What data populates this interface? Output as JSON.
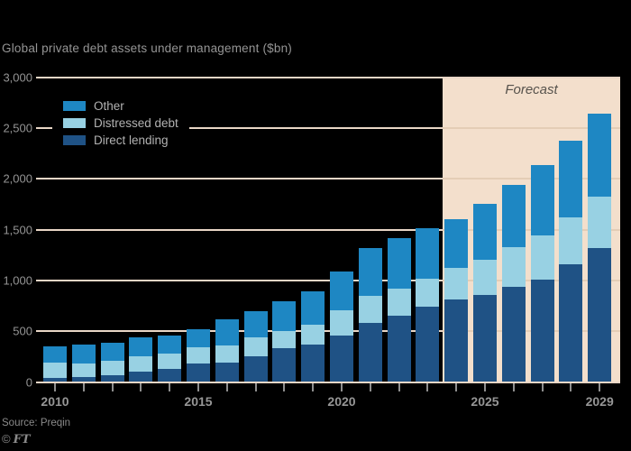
{
  "title": "Global private debt assets under management ($bn)",
  "forecast": {
    "label": "Forecast",
    "start_year": 2024
  },
  "legend": [
    {
      "label": "Other",
      "color": "#1e87c3"
    },
    {
      "label": "Distressed debt",
      "color": "#98d1e3"
    },
    {
      "label": "Direct lending",
      "color": "#1f5285"
    }
  ],
  "source": {
    "label": "Source: Preqin"
  },
  "ft_credit": {
    "symbol": "©",
    "text": "FT"
  },
  "colors": {
    "background": "#000000",
    "gridline": "#e9d6c6",
    "forecast_band": "#f3dfcc",
    "band_gridline": "#e4cdb6",
    "other": "#1e87c3",
    "distressed_debt": "#98d1e3",
    "direct_lending": "#1f5285",
    "axis_text": "#949494"
  },
  "chart_data": {
    "type": "bar",
    "stacked": true,
    "title": "Global private debt assets under management ($bn)",
    "xlabel": "",
    "ylabel": "$bn",
    "ylim": [
      0,
      3000
    ],
    "grid": true,
    "legend_position": "top-left",
    "forecast_region": {
      "from_year": 2024,
      "to_year": 2029,
      "label": "Forecast"
    },
    "x": [
      2010,
      2011,
      2012,
      2013,
      2014,
      2015,
      2016,
      2017,
      2018,
      2019,
      2020,
      2021,
      2022,
      2023,
      2024,
      2025,
      2026,
      2027,
      2028,
      2029
    ],
    "series": [
      {
        "name": "Direct lending",
        "color": "#1f5285",
        "values": [
          40,
          50,
          65,
          100,
          125,
          185,
          195,
          255,
          330,
          365,
          460,
          585,
          655,
          740,
          810,
          860,
          940,
          1010,
          1155,
          1320
        ]
      },
      {
        "name": "Distressed debt",
        "color": "#98d1e3",
        "values": [
          150,
          130,
          145,
          150,
          155,
          160,
          165,
          185,
          170,
          200,
          250,
          260,
          260,
          275,
          310,
          340,
          390,
          435,
          465,
          500
        ]
      },
      {
        "name": "Other",
        "color": "#1e87c3",
        "values": [
          165,
          190,
          180,
          185,
          180,
          175,
          255,
          255,
          290,
          325,
          375,
          475,
          505,
          495,
          480,
          555,
          610,
          690,
          750,
          820
        ]
      }
    ],
    "totals": [
      355,
      370,
      390,
      435,
      460,
      520,
      615,
      695,
      790,
      890,
      1085,
      1320,
      1420,
      1510,
      1600,
      1755,
      1940,
      2135,
      2370,
      2640
    ],
    "yticks": [
      0,
      500,
      1000,
      1500,
      2000,
      2500,
      3000
    ],
    "ytick_labels": [
      "0",
      "500",
      "1,000",
      "1,500",
      "2,000",
      "2,500",
      "3,000"
    ],
    "xtick_label_years": [
      2010,
      2015,
      2020,
      2025,
      2029
    ],
    "xtick_labels": [
      "2010",
      "2015",
      "2020",
      "2025",
      "2029"
    ]
  }
}
